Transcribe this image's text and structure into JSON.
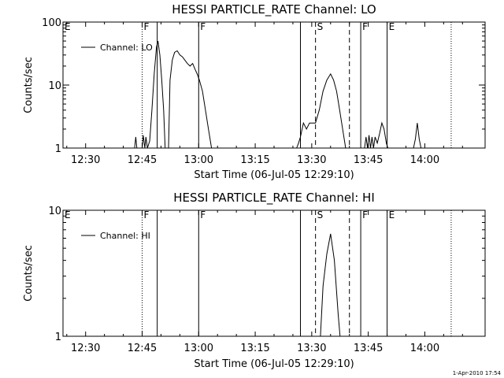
{
  "footer_timestamp": "1-Apr-2010 17:54",
  "chart_data": [
    {
      "type": "line",
      "title": "HESSI PARTICLE_RATE Channel: LO",
      "xlabel": "Start Time (06-Jul-05 12:29:10)",
      "ylabel": "Counts/sec",
      "y_scale": "log",
      "ylim": [
        1,
        100
      ],
      "y_ticks": [
        {
          "v": 1,
          "label": "1"
        },
        {
          "v": 10,
          "label": "10"
        },
        {
          "v": 100,
          "label": "100"
        }
      ],
      "xlim": [
        "12:24",
        "14:16"
      ],
      "x_ticks": [
        "12:30",
        "12:45",
        "13:00",
        "13:15",
        "13:30",
        "13:45",
        "14:00"
      ],
      "legend": {
        "text": "Channel: LO",
        "placement": "top-left"
      },
      "vlines": [
        {
          "time": "12:45",
          "style": "dotted",
          "label": ""
        },
        {
          "time": "12:49",
          "style": "solid",
          "label": ""
        },
        {
          "time": "13:00",
          "style": "solid",
          "label": ""
        },
        {
          "time": "13:27",
          "style": "solid",
          "label": ""
        },
        {
          "time": "13:31",
          "style": "dashed",
          "label": ""
        },
        {
          "time": "13:40",
          "style": "dashed",
          "label": ""
        },
        {
          "time": "13:43",
          "style": "solid",
          "label": ""
        },
        {
          "time": "13:50",
          "style": "solid",
          "label": ""
        },
        {
          "time": "14:07",
          "style": "dotted",
          "label": ""
        }
      ],
      "markers": [
        {
          "time": "12:24",
          "label": "E"
        },
        {
          "time": "12:45",
          "label": "F"
        },
        {
          "time": "13:00",
          "label": "F"
        },
        {
          "time": "13:31",
          "label": "S"
        },
        {
          "time": "13:43",
          "label": "F"
        },
        {
          "time": "13:50",
          "label": "E"
        }
      ],
      "series": [
        {
          "name": "Channel: LO",
          "segments": [
            [
              [
                "12:43",
                1
              ],
              [
                "12:43.3",
                1.5
              ],
              [
                "12:43.6",
                1
              ],
              [
                "12:44",
                1
              ]
            ],
            [
              [
                "12:45",
                1
              ],
              [
                "12:45.3",
                1.6
              ],
              [
                "12:45.7",
                1
              ],
              [
                "12:46",
                1.5
              ],
              [
                "12:46.4",
                1
              ],
              [
                "12:47",
                1.3
              ],
              [
                "12:47.6",
                4
              ],
              [
                "12:48.2",
                15
              ],
              [
                "12:48.8",
                40
              ],
              [
                "12:49.2",
                50
              ],
              [
                "12:49.7",
                30
              ],
              [
                "12:50.2",
                12
              ],
              [
                "12:50.7",
                4
              ],
              [
                "12:51.1",
                1
              ]
            ],
            [
              [
                "12:52",
                1
              ],
              [
                "12:52.4",
                12
              ],
              [
                "12:53",
                25
              ],
              [
                "12:53.6",
                33
              ],
              [
                "12:54.3",
                35
              ],
              [
                "12:55",
                30
              ],
              [
                "12:55.7",
                28
              ],
              [
                "12:56.3",
                25
              ],
              [
                "12:57",
                22
              ],
              [
                "12:57.7",
                20
              ],
              [
                "12:58.4",
                22
              ],
              [
                "12:59",
                18
              ],
              [
                "12:59.6",
                15
              ],
              [
                "13:00.2",
                12
              ],
              [
                "13:01",
                8
              ],
              [
                "13:01.8",
                4
              ],
              [
                "13:02.6",
                2
              ],
              [
                "13:03.4",
                1
              ]
            ],
            [
              [
                "13:26",
                1
              ],
              [
                "13:26.5",
                1.2
              ],
              [
                "13:27",
                1.5
              ],
              [
                "13:27.8",
                2.5
              ],
              [
                "13:28.6",
                2
              ],
              [
                "13:29.4",
                2.5
              ],
              [
                "13:30.4",
                2.5
              ],
              [
                "13:31",
                2.5
              ],
              [
                "13:32",
                4
              ],
              [
                "13:33",
                8
              ],
              [
                "13:34",
                12
              ],
              [
                "13:35",
                15
              ],
              [
                "13:35.8",
                12
              ],
              [
                "13:36.6",
                8
              ],
              [
                "13:37.4",
                4
              ],
              [
                "13:38.2",
                2
              ],
              [
                "13:39",
                1
              ]
            ],
            [
              [
                "13:44",
                1
              ],
              [
                "13:44.4",
                1.5
              ],
              [
                "13:44.8",
                1
              ],
              [
                "13:45.2",
                1.6
              ],
              [
                "13:45.6",
                1
              ],
              [
                "13:46",
                1.5
              ],
              [
                "13:46.4",
                1
              ],
              [
                "13:46.8",
                1.5
              ],
              [
                "13:47.4",
                1.2
              ],
              [
                "13:48",
                1.7
              ],
              [
                "13:48.6",
                2.5
              ],
              [
                "13:49.2",
                2
              ],
              [
                "13:49.8",
                1.2
              ],
              [
                "13:50.2",
                1
              ]
            ],
            [
              [
                "13:57",
                1
              ],
              [
                "13:57.5",
                1.4
              ],
              [
                "13:58",
                2.5
              ],
              [
                "13:58.5",
                1.4
              ],
              [
                "13:59",
                1
              ]
            ]
          ]
        }
      ]
    },
    {
      "type": "line",
      "title": "HESSI PARTICLE_RATE Channel: HI",
      "xlabel": "Start Time (06-Jul-05 12:29:10)",
      "ylabel": "Counts/sec",
      "y_scale": "log",
      "ylim": [
        1,
        10
      ],
      "y_ticks": [
        {
          "v": 1,
          "label": "1"
        },
        {
          "v": 10,
          "label": "10"
        }
      ],
      "xlim": [
        "12:24",
        "14:16"
      ],
      "x_ticks": [
        "12:30",
        "12:45",
        "13:00",
        "13:15",
        "13:30",
        "13:45",
        "14:00"
      ],
      "legend": {
        "text": "Channel: HI",
        "placement": "top-left"
      },
      "vlines": [
        {
          "time": "12:45",
          "style": "dotted",
          "label": ""
        },
        {
          "time": "12:49",
          "style": "solid",
          "label": ""
        },
        {
          "time": "13:00",
          "style": "solid",
          "label": ""
        },
        {
          "time": "13:27",
          "style": "solid",
          "label": ""
        },
        {
          "time": "13:31",
          "style": "dashed",
          "label": ""
        },
        {
          "time": "13:40",
          "style": "dashed",
          "label": ""
        },
        {
          "time": "13:43",
          "style": "solid",
          "label": ""
        },
        {
          "time": "13:50",
          "style": "solid",
          "label": ""
        },
        {
          "time": "14:07",
          "style": "dotted",
          "label": ""
        }
      ],
      "markers": [
        {
          "time": "12:24",
          "label": "E"
        },
        {
          "time": "12:45",
          "label": "F"
        },
        {
          "time": "13:00",
          "label": "F"
        },
        {
          "time": "13:31",
          "label": "S"
        },
        {
          "time": "13:43",
          "label": "F"
        },
        {
          "time": "13:50",
          "label": "E"
        }
      ],
      "series": [
        {
          "name": "Channel: HI",
          "segments": [
            [
              [
                "13:32.3",
                1
              ],
              [
                "13:33",
                2.5
              ],
              [
                "13:34",
                4.5
              ],
              [
                "13:35",
                6.5
              ],
              [
                "13:36",
                4
              ],
              [
                "13:37",
                1.5
              ],
              [
                "13:37.5",
                1
              ]
            ]
          ]
        }
      ]
    }
  ]
}
